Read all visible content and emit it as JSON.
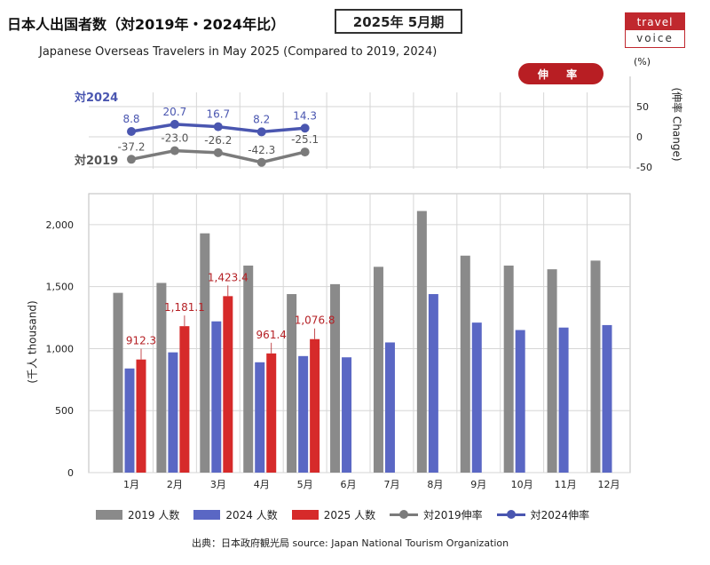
{
  "header": {
    "title_jp": "日本人出国者数（対2019年・2024年比）",
    "period": "2025年 5月期",
    "title_en": "Japanese Overseas Travelers in May 2025 (Compared to 2019, 2024)"
  },
  "logo": {
    "top": "travel",
    "bottom": "voice"
  },
  "change_panel": {
    "badge": "伸 率",
    "unit": "(%)",
    "right_axis_label": "(伸率 Change)",
    "series_label_2024": "対2024",
    "series_label_2019": "対2019"
  },
  "source": "出典：日本政府観光局  source: Japan National Tourism Organization",
  "colors": {
    "bar2019": "#8a8a8a",
    "bar2024": "#5a67c4",
    "bar2025": "#d62a2a",
    "line2019": "#7b7b7b",
    "line2024": "#4a56b0",
    "label2025": "#b52025",
    "badge": "#b81e23",
    "logo": "#c0282e"
  },
  "chart_data": [
    {
      "type": "bar",
      "ylabel": "(千人 thousand)",
      "ylim": [
        0,
        2250
      ],
      "yticks": [
        0,
        500,
        1000,
        1500,
        2000
      ],
      "grid": true,
      "categories": [
        "1月",
        "2月",
        "3月",
        "4月",
        "5月",
        "6月",
        "7月",
        "8月",
        "9月",
        "10月",
        "11月",
        "12月"
      ],
      "series": [
        {
          "name": "2019 人数",
          "values": [
            1450,
            1530,
            1930,
            1670,
            1440,
            1520,
            1660,
            2110,
            1750,
            1670,
            1640,
            1710
          ]
        },
        {
          "name": "2024 人数",
          "values": [
            840,
            970,
            1220,
            890,
            940,
            930,
            1050,
            1440,
            1210,
            1150,
            1170,
            1190
          ]
        },
        {
          "name": "2025 人数",
          "values": [
            912.3,
            1181.1,
            1423.4,
            961.4,
            1076.8,
            null,
            null,
            null,
            null,
            null,
            null,
            null
          ],
          "labels": [
            "912.3",
            "1,181.1",
            "1,423.4",
            "961.4",
            "1,076.8"
          ]
        }
      ],
      "legend_position": "bottom"
    },
    {
      "type": "line",
      "ylim": [
        -50,
        50
      ],
      "yticks": [
        -50,
        0,
        50
      ],
      "grid": true,
      "categories": [
        "1月",
        "2月",
        "3月",
        "4月",
        "5月"
      ],
      "series": [
        {
          "name": "対2019伸率",
          "values": [
            -37.2,
            -23.0,
            -26.2,
            -42.3,
            -25.1
          ],
          "labels": [
            "-37.2",
            "-23.0",
            "-26.2",
            "-42.3",
            "-25.1"
          ]
        },
        {
          "name": "対2024伸率",
          "values": [
            8.8,
            20.7,
            16.7,
            8.2,
            14.3
          ],
          "labels": [
            "8.8",
            "20.7",
            "16.7",
            "8.2",
            "14.3"
          ]
        }
      ]
    }
  ]
}
